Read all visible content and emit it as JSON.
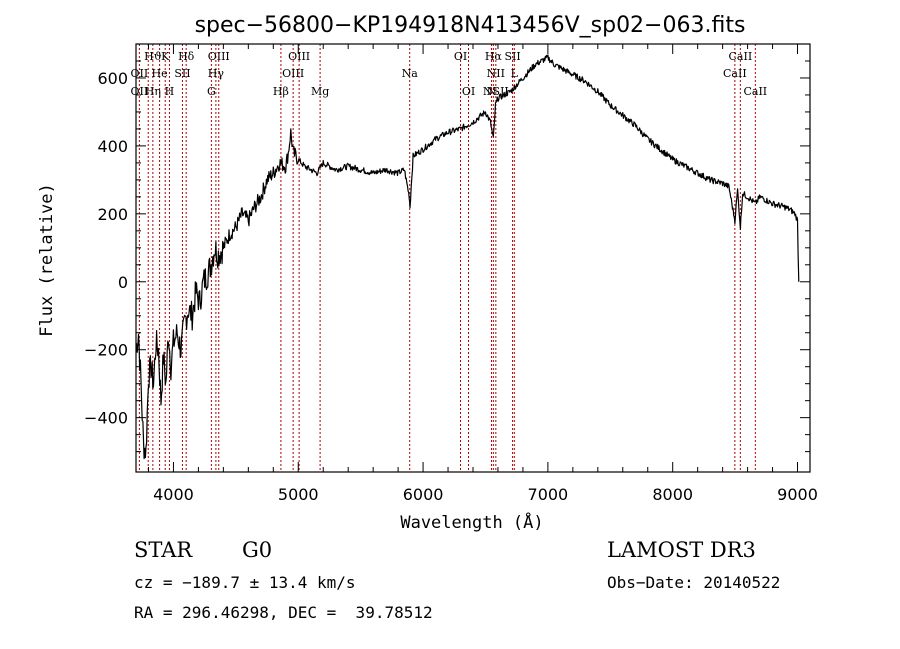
{
  "chart_data": {
    "type": "line",
    "title": "spec−56800−KP194918N413456V_sp02−063.fits",
    "xlabel": "Wavelength (Å)",
    "ylabel": "Flux (relative)",
    "xlim": [
      3700,
      9100
    ],
    "ylim": [
      -560,
      700
    ],
    "xticks": [
      4000,
      5000,
      6000,
      7000,
      8000,
      9000
    ],
    "yticks": [
      -400,
      -200,
      0,
      200,
      400,
      600
    ],
    "xtick_labels": [
      "4000",
      "5000",
      "6000",
      "7000",
      "8000",
      "9000"
    ],
    "ytick_labels": [
      "−400",
      "−200",
      "0",
      "200",
      "400",
      "600"
    ],
    "series": [
      {
        "name": "flux",
        "x": [
          3700,
          3720,
          3740,
          3760,
          3780,
          3800,
          3820,
          3840,
          3860,
          3880,
          3900,
          3920,
          3940,
          3960,
          3980,
          4000,
          4030,
          4060,
          4090,
          4120,
          4150,
          4180,
          4210,
          4240,
          4270,
          4300,
          4330,
          4360,
          4400,
          4450,
          4500,
          4550,
          4600,
          4650,
          4700,
          4750,
          4800,
          4850,
          4900,
          4920,
          4940,
          4960,
          5000,
          5050,
          5100,
          5150,
          5200,
          5300,
          5400,
          5500,
          5600,
          5700,
          5800,
          5850,
          5890,
          5895,
          5920,
          6000,
          6100,
          6200,
          6300,
          6400,
          6500,
          6540,
          6563,
          6580,
          6600,
          6650,
          6700,
          6750,
          6800,
          6850,
          6900,
          6950,
          7000,
          7050,
          7100,
          7200,
          7300,
          7400,
          7500,
          7600,
          7700,
          7800,
          7900,
          8000,
          8100,
          8200,
          8300,
          8400,
          8450,
          8498,
          8520,
          8542,
          8560,
          8600,
          8662,
          8700,
          8800,
          8900,
          8950,
          8980,
          9000,
          9010
        ],
        "y": [
          -200,
          -150,
          -300,
          -480,
          -500,
          -280,
          -250,
          -300,
          -180,
          -200,
          -350,
          -220,
          -300,
          -150,
          -250,
          -180,
          -150,
          -200,
          -120,
          -80,
          -100,
          -30,
          -60,
          0,
          20,
          50,
          100,
          80,
          100,
          140,
          160,
          200,
          180,
          220,
          250,
          300,
          320,
          350,
          340,
          380,
          440,
          380,
          360,
          340,
          330,
          320,
          350,
          330,
          340,
          330,
          320,
          330,
          320,
          330,
          250,
          220,
          370,
          390,
          420,
          440,
          450,
          470,
          500,
          470,
          420,
          520,
          540,
          550,
          560,
          580,
          600,
          620,
          640,
          650,
          660,
          640,
          630,
          610,
          590,
          560,
          520,
          490,
          460,
          420,
          390,
          360,
          340,
          320,
          300,
          290,
          280,
          180,
          270,
          160,
          260,
          250,
          230,
          250,
          230,
          220,
          210,
          200,
          180,
          0
        ]
      }
    ],
    "spectral_lines": [
      {
        "label": "Hϑ",
        "x": 3835,
        "row": 1
      },
      {
        "label": "K",
        "x": 3934,
        "row": 1
      },
      {
        "label": "Hδ",
        "x": 4102,
        "row": 1
      },
      {
        "label": "OIII",
        "x": 4363,
        "row": 1
      },
      {
        "label": "OIII",
        "x": 5007,
        "row": 1
      },
      {
        "label": "OI",
        "x": 6300,
        "row": 1
      },
      {
        "label": "Hα",
        "x": 6563,
        "row": 1
      },
      {
        "label": "SII",
        "x": 6717,
        "row": 1
      },
      {
        "label": "CaII",
        "x": 8542,
        "row": 1
      },
      {
        "label": "OII",
        "x": 3727,
        "row": 2
      },
      {
        "label": "He",
        "x": 3889,
        "row": 2
      },
      {
        "label": "SII",
        "x": 4072,
        "row": 2
      },
      {
        "label": "Hγ",
        "x": 4340,
        "row": 2
      },
      {
        "label": "OIII",
        "x": 4959,
        "row": 2
      },
      {
        "label": "Na",
        "x": 5893,
        "row": 2
      },
      {
        "label": "NII",
        "x": 6583,
        "row": 2
      },
      {
        "label": "L",
        "x": 6731,
        "row": 2
      },
      {
        "label": "CaII",
        "x": 8498,
        "row": 2
      },
      {
        "label": "OII",
        "x": 3727,
        "row": 3
      },
      {
        "label": "Hη",
        "x": 3835,
        "row": 3
      },
      {
        "label": "H",
        "x": 3968,
        "row": 3
      },
      {
        "label": "G",
        "x": 4304,
        "row": 3
      },
      {
        "label": "Hβ",
        "x": 4861,
        "row": 3
      },
      {
        "label": "Mg",
        "x": 5175,
        "row": 3
      },
      {
        "label": "OI",
        "x": 6364,
        "row": 3
      },
      {
        "label": "N",
        "x": 6548,
        "row": 3
      },
      {
        "label": "NSII",
        "x": 6583,
        "row": 3
      },
      {
        "label": "CaII",
        "x": 8662,
        "row": 3
      }
    ],
    "line_positions": [
      3727,
      3798,
      3835,
      3889,
      3934,
      3968,
      4072,
      4102,
      4304,
      4340,
      4363,
      4861,
      4959,
      5007,
      5175,
      5893,
      6300,
      6364,
      6548,
      6563,
      6583,
      6717,
      6731,
      8498,
      8542,
      8662
    ]
  },
  "info": {
    "object_class": "STAR",
    "subclass": "G0",
    "survey": "LAMOST DR3",
    "cz": "cz = −189.7 ± 13.4 km/s",
    "obs_date": "Obs−Date: 20140522",
    "coords": "RA = 296.46298, DEC =  39.78512"
  }
}
